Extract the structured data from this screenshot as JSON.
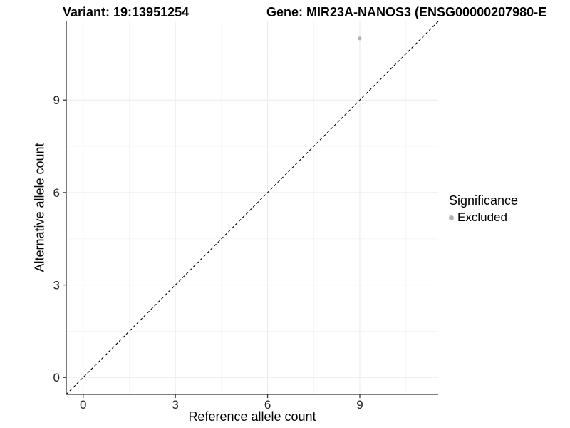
{
  "header": {
    "variant_title": "Variant: 19:13951254",
    "gene_title": "Gene: MIR23A-NANOS3 (ENSG00000207980-E"
  },
  "chart_data": {
    "type": "scatter",
    "xlabel": "Reference allele count",
    "ylabel": "Alternative allele count",
    "xlim": [
      -0.55,
      11.55
    ],
    "ylim": [
      -0.55,
      11.55
    ],
    "x_ticks": [
      0,
      3,
      6,
      9
    ],
    "x_tick_labels": [
      "0",
      "3",
      "6",
      "9"
    ],
    "y_ticks": [
      0,
      3,
      6,
      9
    ],
    "y_tick_labels": [
      "0",
      "3",
      "6",
      "9"
    ],
    "minor_gridlines": [
      1.5,
      4.5,
      7.5,
      10.5
    ],
    "grid": true,
    "points": [
      {
        "x": 9,
        "y": 11,
        "significance": "Excluded"
      }
    ],
    "identity_line": {
      "style": "dashed",
      "slope": 1,
      "intercept": 0
    },
    "legend": {
      "title": "Significance",
      "position": "right",
      "items": [
        {
          "label": "Excluded",
          "color": "#b3b3b3"
        }
      ]
    },
    "colors": {
      "background": "#ffffff",
      "panel_background": "#ffffff",
      "grid_major": "#ececec",
      "grid_minor": "#f5f5f5",
      "axis_line": "#333333",
      "tick_mark": "#333333",
      "tick_label": "#262626",
      "identity_line": "#000000",
      "point": "#b3b3b3"
    }
  }
}
